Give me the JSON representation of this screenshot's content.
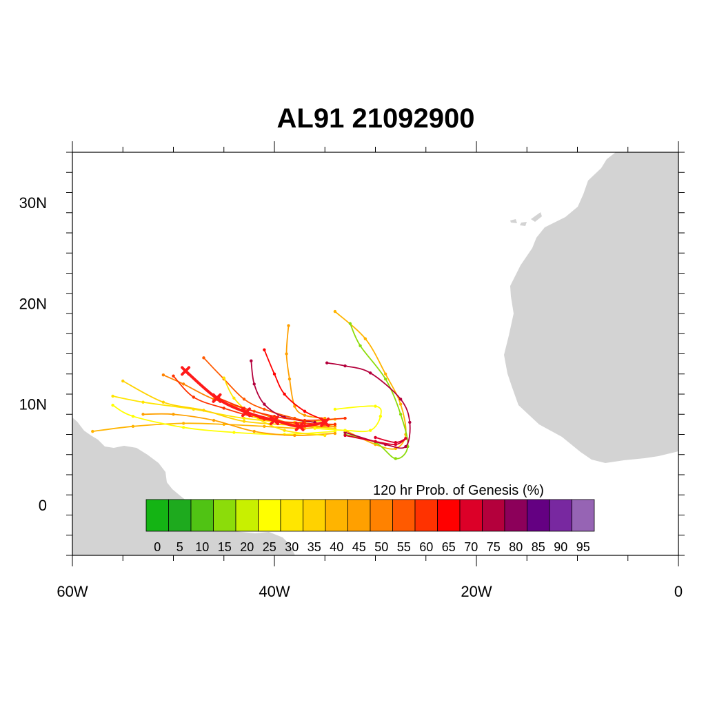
{
  "title": "AL91 21092900",
  "map": {
    "lon_range": [
      -60,
      0
    ],
    "lat_range": [
      -5,
      35
    ],
    "land_color": "#d3d3d3",
    "x_ticks": [
      {
        "lon": -60,
        "label": "60W"
      },
      {
        "lon": -40,
        "label": "40W"
      },
      {
        "lon": -20,
        "label": "20W"
      },
      {
        "lon": 0,
        "label": "0"
      }
    ],
    "y_ticks": [
      {
        "lat": 0,
        "label": "0"
      },
      {
        "lat": 10,
        "label": "10N"
      },
      {
        "lat": 20,
        "label": "20N"
      },
      {
        "lat": 30,
        "label": "30N"
      }
    ]
  },
  "colorbar": {
    "label": "120 hr Prob. of Genesis (%)",
    "labels": [
      "0",
      "5",
      "10",
      "15",
      "20",
      "25",
      "30",
      "35",
      "40",
      "45",
      "50",
      "55",
      "60",
      "65",
      "70",
      "75",
      "80",
      "85",
      "90",
      "95"
    ],
    "colors": [
      "#14b414",
      "#1eaa1e",
      "#50c314",
      "#8cdc0a",
      "#c8f000",
      "#ffff00",
      "#ffe600",
      "#ffd200",
      "#ffb400",
      "#ffa000",
      "#ff8200",
      "#ff5a00",
      "#ff3200",
      "#ff0000",
      "#dc0028",
      "#b4003c",
      "#8c005a",
      "#640082",
      "#7828a0",
      "#9664b4"
    ]
  },
  "mean_track": [
    {
      "lon": -35.0,
      "lat": 8.2
    },
    {
      "lon": -37.5,
      "lat": 7.8
    },
    {
      "lon": -40.0,
      "lat": 8.4
    },
    {
      "lon": -42.8,
      "lat": 9.2
    },
    {
      "lon": -45.7,
      "lat": 10.6
    },
    {
      "lon": -48.8,
      "lat": 13.3
    }
  ],
  "ensemble_tracks": [
    {
      "color_index": 8,
      "points": [
        [
          -34,
          8.0
        ],
        [
          -37,
          7.6
        ],
        [
          -41,
          7.8
        ],
        [
          -45,
          8.0
        ],
        [
          -49,
          8.1
        ],
        [
          -54,
          7.8
        ],
        [
          -58,
          7.3
        ]
      ]
    },
    {
      "color_index": 6,
      "points": [
        [
          -34,
          8.5
        ],
        [
          -38,
          8.2
        ],
        [
          -43,
          8.6
        ],
        [
          -48,
          9.5
        ],
        [
          -53,
          10.2
        ],
        [
          -56,
          10.8
        ]
      ]
    },
    {
      "color_index": 10,
      "points": [
        [
          -34,
          7.8
        ],
        [
          -38,
          8.0
        ],
        [
          -42,
          9.3
        ],
        [
          -46,
          10.5
        ],
        [
          -49,
          12.0
        ],
        [
          -51,
          12.9
        ]
      ]
    },
    {
      "color_index": 11,
      "points": [
        [
          -35,
          8.0
        ],
        [
          -38,
          8.6
        ],
        [
          -41,
          9.5
        ],
        [
          -43,
          10.5
        ],
        [
          -45,
          12.5
        ],
        [
          -47,
          14.6
        ]
      ]
    },
    {
      "color_index": 9,
      "points": [
        [
          -35,
          8.6
        ],
        [
          -37,
          8.9
        ],
        [
          -38,
          9.8
        ],
        [
          -38.5,
          12.5
        ],
        [
          -38.8,
          15.0
        ],
        [
          -38.6,
          17.8
        ]
      ]
    },
    {
      "color_index": 13,
      "points": [
        [
          -35,
          8.4
        ],
        [
          -37,
          9.3
        ],
        [
          -39,
          11.0
        ],
        [
          -40,
          13.0
        ],
        [
          -41,
          15.4
        ]
      ]
    },
    {
      "color_index": 15,
      "points": [
        [
          -36,
          8.2
        ],
        [
          -39,
          8.7
        ],
        [
          -41,
          10.0
        ],
        [
          -42,
          12.0
        ],
        [
          -42.3,
          14.3
        ]
      ]
    },
    {
      "color_index": 8,
      "points": [
        [
          -33,
          7.4
        ],
        [
          -30,
          6.0
        ],
        [
          -28,
          5.6
        ],
        [
          -27,
          7.0
        ],
        [
          -27.5,
          10.0
        ],
        [
          -29,
          13.0
        ],
        [
          -31,
          16.5
        ],
        [
          -34,
          19.2
        ]
      ]
    },
    {
      "color_index": 3,
      "points": [
        [
          -33,
          7.0
        ],
        [
          -30,
          6.2
        ],
        [
          -28,
          4.6
        ],
        [
          -26.8,
          5.8
        ],
        [
          -27.5,
          9.0
        ],
        [
          -29,
          12.5
        ],
        [
          -31.5,
          15.8
        ],
        [
          -32.5,
          18.0
        ]
      ]
    },
    {
      "color_index": 15,
      "points": [
        [
          -33,
          7.2
        ],
        [
          -29,
          6.0
        ],
        [
          -27,
          5.8
        ],
        [
          -26.6,
          8.2
        ],
        [
          -27.5,
          10.5
        ],
        [
          -30.5,
          13.1
        ],
        [
          -33,
          13.8
        ],
        [
          -34.8,
          14.1
        ]
      ]
    },
    {
      "color_index": 5,
      "points": [
        [
          -34,
          7.3
        ],
        [
          -39,
          7.0
        ],
        [
          -44,
          7.2
        ],
        [
          -49,
          7.7
        ],
        [
          -54,
          8.8
        ],
        [
          -56,
          9.9
        ]
      ]
    },
    {
      "color_index": 7,
      "points": [
        [
          -34,
          7.6
        ],
        [
          -38,
          7.9
        ],
        [
          -43,
          8.3
        ],
        [
          -47,
          9.4
        ],
        [
          -51,
          10.2
        ],
        [
          -55,
          12.3
        ]
      ]
    },
    {
      "color_index": 12,
      "points": [
        [
          -34,
          8.0
        ],
        [
          -37,
          8.1
        ],
        [
          -41,
          8.5
        ],
        [
          -45,
          9.6
        ],
        [
          -48,
          10.7
        ],
        [
          -50,
          12.8
        ]
      ]
    },
    {
      "color_index": 5,
      "points": [
        [
          -34,
          9.5
        ],
        [
          -30,
          9.8
        ],
        [
          -29.5,
          8.8
        ],
        [
          -30.5,
          7.4
        ],
        [
          -33,
          7.4
        ],
        [
          -36,
          7.6
        ]
      ]
    },
    {
      "color_index": 9,
      "points": [
        [
          -34,
          7.1
        ],
        [
          -38,
          6.9
        ],
        [
          -42,
          7.3
        ],
        [
          -46,
          8.4
        ],
        [
          -50,
          9.0
        ],
        [
          -53,
          9.0
        ]
      ]
    },
    {
      "color_index": 14,
      "points": [
        [
          -33,
          6.9
        ],
        [
          -30,
          6.3
        ],
        [
          -28,
          6.0
        ],
        [
          -27,
          6.6
        ],
        [
          -28,
          6.2
        ],
        [
          -30,
          6.7
        ]
      ]
    },
    {
      "color_index": 6,
      "points": [
        [
          -35,
          6.9
        ],
        [
          -39,
          7.4
        ],
        [
          -42,
          8.8
        ],
        [
          -44,
          10.6
        ],
        [
          -45,
          12.6
        ]
      ]
    },
    {
      "color_index": 12,
      "points": [
        [
          -33,
          8.6
        ],
        [
          -37,
          8.4
        ],
        [
          -40,
          8.8
        ],
        [
          -43,
          9.6
        ],
        [
          -45.5,
          10.6
        ]
      ]
    }
  ]
}
